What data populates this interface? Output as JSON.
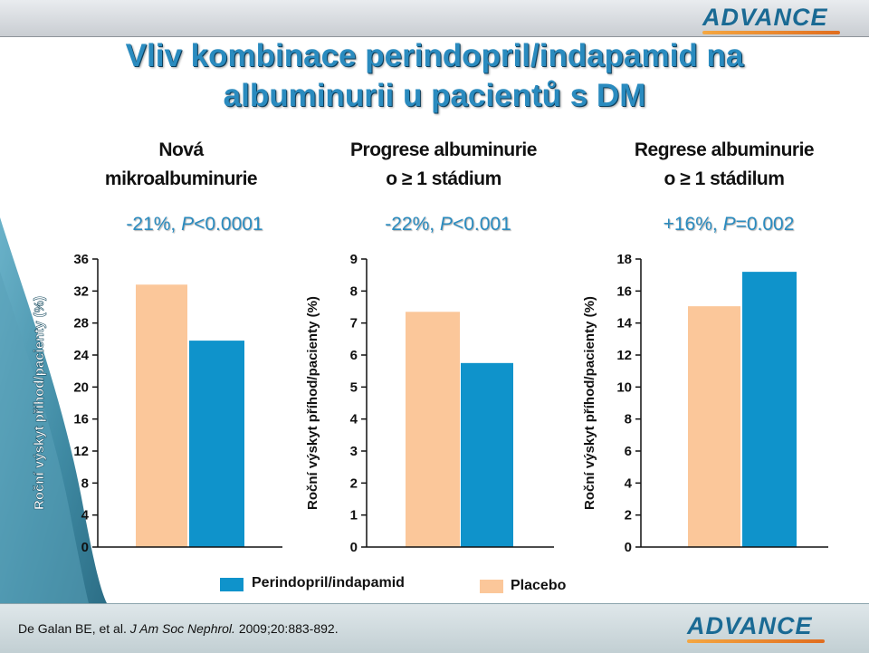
{
  "brand": {
    "logo_text": "ADVANCE"
  },
  "slide": {
    "title_line1": "Vliv kombinace perindopril/indapamid na",
    "title_line2": "albuminurii u pacientů s DM"
  },
  "colors": {
    "perindopril": "#0f93cb",
    "placebo": "#fbc79a",
    "stat_text": "#2a8bbf"
  },
  "legend": {
    "items": [
      {
        "label": "Perindopril/indapamid",
        "color": "#0f93cb"
      },
      {
        "label": "Placebo",
        "color": "#fbc79a"
      }
    ]
  },
  "citation": {
    "authors": "De Galan BE, et al.",
    "journal": "J Am Soc Nephrol.",
    "details": "2009;20:883-892."
  },
  "chart_data": [
    {
      "type": "bar",
      "title_line1": "Nová",
      "title_line2": "mikroalbuminurie",
      "stat_effect": "-21%, ",
      "stat_p_symbol": "P",
      "stat_p_value": "<0.0001",
      "ylabel": "Roční výskyt příhod/pacienty (%)",
      "ylim": [
        0,
        36
      ],
      "yticks": [
        "0",
        "4",
        "8",
        "12",
        "16",
        "20",
        "24",
        "28",
        "32",
        "36"
      ],
      "categories": [
        "Placebo",
        "Perindopril/indapamid"
      ],
      "values": [
        32.8,
        25.8
      ]
    },
    {
      "type": "bar",
      "title_line1": "Progrese albuminurie",
      "title_line2": "o ≥ 1 stádium",
      "stat_effect": "-22%, ",
      "stat_p_symbol": "P",
      "stat_p_value": "<0.001",
      "ylabel": "Roční výskyt příhod/pacienty (%)",
      "ylim": [
        0,
        9
      ],
      "yticks": [
        "0",
        "1",
        "2",
        "3",
        "4",
        "5",
        "6",
        "7",
        "8",
        "9"
      ],
      "categories": [
        "Placebo",
        "Perindopril/indapamid"
      ],
      "values": [
        7.35,
        5.75
      ]
    },
    {
      "type": "bar",
      "title_line1": "Regrese albuminurie",
      "title_line2": "o ≥ 1 stádilum",
      "stat_effect": "+16%, ",
      "stat_p_symbol": "P",
      "stat_p_value": "=0.002",
      "ylabel": "Roční výskyt příhod/pacienty (%)",
      "ylim": [
        0,
        18
      ],
      "yticks": [
        "0",
        "2",
        "4",
        "6",
        "8",
        "10",
        "12",
        "14",
        "16",
        "18"
      ],
      "categories": [
        "Placebo",
        "Perindopril/indapamid"
      ],
      "values": [
        15.05,
        17.2
      ]
    }
  ]
}
